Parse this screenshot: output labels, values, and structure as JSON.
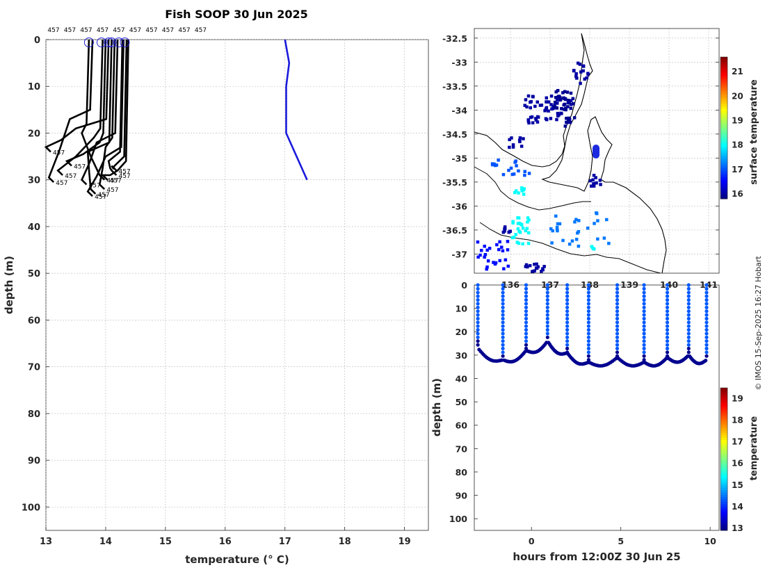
{
  "figure": {
    "title": "Fish SOOP 30 Jun 2025",
    "credit": "© IMOS 15-Sep-2025 16:27 Hobart",
    "colors": {
      "profile": "#000000",
      "reference": "#1a1adb",
      "marker": "#2020d0"
    }
  },
  "chart_data": [
    {
      "type": "line",
      "name": "temperature-profiles",
      "xlabel": "temperature (° C)",
      "ylabel": "depth (m)",
      "xlim": [
        13,
        19.4
      ],
      "ylim": [
        105,
        0
      ],
      "xticks": [
        13,
        14,
        15,
        16,
        17,
        18,
        19
      ],
      "yticks": [
        0,
        10,
        20,
        30,
        40,
        50,
        60,
        70,
        80,
        90,
        100
      ],
      "grid": true,
      "top_labels": [
        "457",
        "457",
        "457",
        "457",
        "457",
        "457",
        "457",
        "457",
        "457",
        "457"
      ],
      "end_label": "457",
      "reference_profile": {
        "temperature": [
          17.0,
          17.07,
          17.02,
          17.02,
          17.37
        ],
        "depth": [
          0,
          5,
          10,
          20,
          30
        ]
      },
      "surface_markers": [
        13.72,
        13.93,
        14.05,
        14.1,
        14.22,
        14.32
      ],
      "profiles": [
        {
          "s": 13.72,
          "b": 13.9,
          "bd": 30,
          "md": 18,
          "mt": 13.6
        },
        {
          "s": 13.78,
          "b": 13.05,
          "bd": 30.5,
          "md": 15,
          "mt": 13.4
        },
        {
          "s": 13.95,
          "b": 13.2,
          "bd": 29,
          "md": 19,
          "mt": 13.8
        },
        {
          "s": 14.0,
          "b": 13.35,
          "bd": 27,
          "md": 20,
          "mt": 13.9
        },
        {
          "s": 14.05,
          "b": 13.0,
          "bd": 24,
          "md": 17,
          "mt": 13.5
        },
        {
          "s": 14.1,
          "b": 13.75,
          "bd": 33,
          "md": 22,
          "mt": 13.7
        },
        {
          "s": 14.15,
          "b": 13.9,
          "bd": 32,
          "md": 21,
          "mt": 14.0
        },
        {
          "s": 14.2,
          "b": 13.6,
          "bd": 31,
          "md": 20,
          "mt": 13.85
        },
        {
          "s": 14.28,
          "b": 14.1,
          "bd": 29,
          "md": 24,
          "mt": 14.05
        },
        {
          "s": 14.3,
          "b": 13.7,
          "bd": 33.5,
          "md": 23,
          "mt": 14.0
        },
        {
          "s": 14.35,
          "b": 14.1,
          "bd": 28,
          "md": 25,
          "mt": 14.15
        },
        {
          "s": 14.38,
          "b": 13.95,
          "bd": 30,
          "md": 26,
          "mt": 14.2
        }
      ]
    },
    {
      "type": "heatmap",
      "name": "surface-temperature-map",
      "colorbar_label": "surface temperature",
      "yticks": [
        "-32.5",
        "-33",
        "-33.5",
        "-34",
        "-34.5",
        "-35",
        "-35.5",
        "-36",
        "-36.5",
        "-37"
      ],
      "lat_range": [
        -37.4,
        -32.3
      ],
      "xticks_partial": [
        "136",
        "137",
        "138",
        "139",
        "140",
        "141"
      ],
      "colorbar_ticks": [
        "16",
        "17",
        "18",
        "19",
        "20",
        "21"
      ],
      "colorbar_range": [
        15.8,
        21.6
      ]
    },
    {
      "type": "scatter",
      "name": "depth-time-section",
      "xlabel": "hours from 12:00Z 30 Jun 25",
      "ylabel": "depth (m)",
      "xlim": [
        -3.2,
        10.5
      ],
      "ylim": [
        105,
        0
      ],
      "xticks": [
        "0",
        "5",
        "10"
      ],
      "xtick_values": [
        0,
        5,
        10
      ],
      "yticks": [
        "0",
        "10",
        "20",
        "30",
        "40",
        "50",
        "60",
        "70",
        "80",
        "90",
        "100"
      ],
      "colorbar_label": "temperature",
      "colorbar_ticks": [
        "13",
        "14",
        "15",
        "16",
        "17",
        "18",
        "19"
      ],
      "colorbar_range": [
        12.9,
        19.5
      ],
      "casts": [
        -3.0,
        -1.6,
        -0.3,
        0.9,
        2.0,
        3.2,
        4.8,
        6.3,
        7.6,
        8.8,
        9.8
      ],
      "bottom_depth": [
        27,
        32,
        28,
        24,
        29,
        33,
        31,
        33,
        31,
        30,
        32
      ]
    }
  ]
}
